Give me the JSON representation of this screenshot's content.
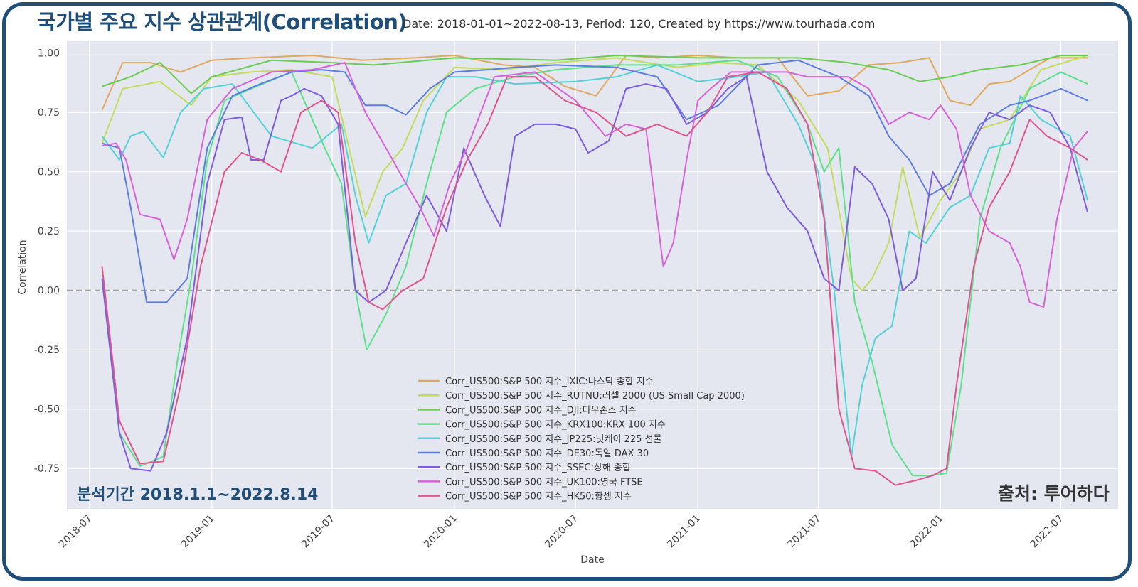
{
  "header": {
    "title": "국가별 주요 지수  상관관계(Correlation)",
    "subtitle": "Date: 2018-01-01~2022-08-13, Period: 120, Created by https://www.tourhada.com"
  },
  "notes": {
    "period": "분석기간 2018.1.1~2022.8.14",
    "source": "출처: 투어하다"
  },
  "colors": {
    "frame": "#1f4e79",
    "plot_bg": "#e5e7f0",
    "grid": "#ffffff",
    "zero_line": "#a0a0a0"
  },
  "chart_data": {
    "type": "line",
    "title": "",
    "xlabel": "Date",
    "ylabel": "Correlation",
    "x_ticks": [
      "2018-07",
      "2019-01",
      "2019-07",
      "2020-01",
      "2020-07",
      "2021-01",
      "2021-07",
      "2022-01",
      "2022-07"
    ],
    "y_ticks": [
      "1.00",
      "0.75",
      "0.50",
      "0.25",
      "0.00",
      "-0.25",
      "-0.50",
      "-0.75"
    ],
    "xlim": [
      "2018-05-28",
      "2022-09-25"
    ],
    "ylim": [
      -0.92,
      1.05
    ],
    "grid": true,
    "legend": "bottom-center",
    "series": [
      {
        "name": "Corr_US500:S&P 500 지수_IXIC:나스닥 종합 지수",
        "color": "#e0a860",
        "x": [
          "2018-07-20",
          "2018-08-20",
          "2018-10-01",
          "2018-11-15",
          "2019-01-01",
          "2019-03-01",
          "2019-06-01",
          "2019-08-15",
          "2019-11-01",
          "2020-01-01",
          "2020-03-15",
          "2020-05-01",
          "2020-06-15",
          "2020-08-01",
          "2020-09-15",
          "2020-11-01",
          "2021-01-01",
          "2021-03-01",
          "2021-05-01",
          "2021-06-15",
          "2021-08-01",
          "2021-09-15",
          "2021-11-01",
          "2021-12-15",
          "2022-01-15",
          "2022-02-15",
          "2022-03-15",
          "2022-04-15",
          "2022-05-15",
          "2022-06-15",
          "2022-08-10"
        ],
        "y": [
          0.76,
          0.96,
          0.96,
          0.92,
          0.97,
          0.98,
          0.99,
          0.97,
          0.98,
          0.99,
          0.95,
          0.94,
          0.86,
          0.82,
          0.99,
          0.98,
          0.99,
          0.98,
          0.98,
          0.82,
          0.84,
          0.95,
          0.96,
          0.98,
          0.8,
          0.78,
          0.87,
          0.88,
          0.93,
          0.98,
          0.98
        ]
      },
      {
        "name": "Corr_US500:S&P 500 지수_RUTNU:러셀 2000 (US Small Cap 2000)",
        "color": "#c3dc5c",
        "x": [
          "2018-07-20",
          "2018-08-20",
          "2018-10-15",
          "2018-12-01",
          "2019-01-01",
          "2019-03-01",
          "2019-05-01",
          "2019-07-01",
          "2019-08-20",
          "2019-09-15",
          "2019-10-15",
          "2019-11-15",
          "2020-01-01",
          "2020-03-15",
          "2020-06-01",
          "2020-09-01",
          "2020-12-01",
          "2021-02-01",
          "2021-04-01",
          "2021-06-01",
          "2021-07-15",
          "2021-08-20",
          "2021-09-05",
          "2021-09-20",
          "2021-10-15",
          "2021-11-05",
          "2021-12-01",
          "2022-01-01",
          "2022-02-01",
          "2022-03-01",
          "2022-04-15",
          "2022-06-01",
          "2022-08-10"
        ],
        "y": [
          0.62,
          0.85,
          0.88,
          0.78,
          0.9,
          0.92,
          0.93,
          0.9,
          0.31,
          0.5,
          0.6,
          0.8,
          0.94,
          0.93,
          0.96,
          0.98,
          0.94,
          0.96,
          0.95,
          0.8,
          0.6,
          0.05,
          0.0,
          0.05,
          0.2,
          0.52,
          0.22,
          0.38,
          0.5,
          0.68,
          0.72,
          0.93,
          0.99
        ]
      },
      {
        "name": "Corr_US500:S&P 500 지수_DJI:다우존스 지수",
        "color": "#6acc52",
        "x": [
          "2018-07-20",
          "2018-09-01",
          "2018-10-15",
          "2018-12-01",
          "2019-01-01",
          "2019-04-01",
          "2019-07-01",
          "2019-09-01",
          "2020-01-01",
          "2020-06-01",
          "2020-09-01",
          "2021-01-01",
          "2021-06-01",
          "2021-08-15",
          "2021-10-15",
          "2021-12-01",
          "2022-01-15",
          "2022-03-01",
          "2022-05-01",
          "2022-07-01",
          "2022-08-10"
        ],
        "y": [
          0.86,
          0.9,
          0.96,
          0.83,
          0.9,
          0.97,
          0.96,
          0.95,
          0.98,
          0.97,
          0.99,
          0.98,
          0.98,
          0.96,
          0.93,
          0.88,
          0.9,
          0.93,
          0.95,
          0.99,
          0.99
        ]
      },
      {
        "name": "Corr_US500:S&P 500 지수_KRX100:KRX 100 지수",
        "color": "#5ce08c",
        "x": [
          "2018-07-20",
          "2018-08-15",
          "2018-09-15",
          "2018-10-20",
          "2018-11-10",
          "2018-12-01",
          "2018-12-25",
          "2019-01-20",
          "2019-03-01",
          "2019-05-01",
          "2019-06-20",
          "2019-07-15",
          "2019-08-05",
          "2019-08-22",
          "2019-09-20",
          "2019-10-20",
          "2019-11-20",
          "2019-12-20",
          "2020-02-01",
          "2020-04-01",
          "2020-06-01",
          "2020-09-01",
          "2020-12-01",
          "2021-03-01",
          "2021-05-01",
          "2021-06-15",
          "2021-07-10",
          "2021-08-01",
          "2021-08-25",
          "2021-09-20",
          "2021-10-20",
          "2021-11-20",
          "2021-12-15",
          "2022-01-10",
          "2022-02-01",
          "2022-03-01",
          "2022-04-01",
          "2022-05-15",
          "2022-07-01",
          "2022-08-10"
        ],
        "y": [
          0.05,
          -0.6,
          -0.74,
          -0.7,
          -0.3,
          0.05,
          0.55,
          0.8,
          0.85,
          0.92,
          0.6,
          0.45,
          0.0,
          -0.25,
          -0.1,
          0.1,
          0.45,
          0.75,
          0.85,
          0.9,
          0.93,
          0.95,
          0.95,
          0.97,
          0.9,
          0.7,
          0.5,
          0.6,
          -0.05,
          -0.3,
          -0.65,
          -0.78,
          -0.78,
          -0.77,
          -0.4,
          0.3,
          0.6,
          0.85,
          0.92,
          0.87
        ]
      },
      {
        "name": "Corr_US500:S&P 500 지수_JP225:닛케이 225 선물",
        "color": "#52d2d6",
        "x": [
          "2018-07-20",
          "2018-08-15",
          "2018-09-01",
          "2018-09-20",
          "2018-10-20",
          "2018-11-15",
          "2018-12-20",
          "2019-02-01",
          "2019-04-01",
          "2019-06-01",
          "2019-07-15",
          "2019-08-05",
          "2019-08-25",
          "2019-09-20",
          "2019-10-20",
          "2019-11-20",
          "2019-12-20",
          "2020-02-01",
          "2020-04-01",
          "2020-07-01",
          "2020-09-01",
          "2020-11-01",
          "2021-01-01",
          "2021-03-01",
          "2021-04-15",
          "2021-06-01",
          "2021-07-01",
          "2021-07-25",
          "2021-08-20",
          "2021-09-05",
          "2021-09-25",
          "2021-10-20",
          "2021-11-15",
          "2021-12-10",
          "2022-01-15",
          "2022-02-15",
          "2022-03-15",
          "2022-04-15",
          "2022-05-01",
          "2022-06-01",
          "2022-07-15",
          "2022-08-10"
        ],
        "y": [
          0.65,
          0.55,
          0.65,
          0.67,
          0.56,
          0.75,
          0.85,
          0.87,
          0.65,
          0.6,
          0.7,
          0.4,
          0.2,
          0.4,
          0.45,
          0.75,
          0.9,
          0.9,
          0.87,
          0.88,
          0.9,
          0.95,
          0.88,
          0.9,
          0.92,
          0.7,
          0.5,
          0.0,
          -0.7,
          -0.4,
          -0.2,
          -0.15,
          0.25,
          0.2,
          0.35,
          0.4,
          0.6,
          0.62,
          0.82,
          0.72,
          0.65,
          0.38
        ]
      },
      {
        "name": "Corr_US500:S&P 500 지수_DE30:독일 DAX 30",
        "color": "#5b7ee0",
        "x": [
          "2018-07-20",
          "2018-08-15",
          "2018-09-01",
          "2018-09-25",
          "2018-10-25",
          "2018-11-25",
          "2018-12-25",
          "2019-02-01",
          "2019-03-15",
          "2019-05-01",
          "2019-06-15",
          "2019-07-20",
          "2019-08-20",
          "2019-09-20",
          "2019-10-20",
          "2019-11-25",
          "2020-01-01",
          "2020-02-20",
          "2020-04-01",
          "2020-06-01",
          "2020-09-01",
          "2020-11-01",
          "2020-12-15",
          "2021-02-01",
          "2021-04-01",
          "2021-06-01",
          "2021-08-01",
          "2021-09-15",
          "2021-10-15",
          "2021-11-15",
          "2021-12-15",
          "2022-01-15",
          "2022-03-01",
          "2022-04-15",
          "2022-05-15",
          "2022-07-01",
          "2022-08-10"
        ],
        "y": [
          0.62,
          0.6,
          0.35,
          -0.05,
          -0.05,
          0.05,
          0.6,
          0.82,
          0.87,
          0.92,
          0.93,
          0.92,
          0.78,
          0.78,
          0.74,
          0.85,
          0.92,
          0.93,
          0.94,
          0.95,
          0.94,
          0.9,
          0.72,
          0.78,
          0.95,
          0.97,
          0.9,
          0.82,
          0.65,
          0.55,
          0.4,
          0.45,
          0.7,
          0.78,
          0.8,
          0.85,
          0.8
        ]
      },
      {
        "name": "Corr_US500:S&P 500 지수_SSEC:상해 종합",
        "color": "#7e5ce0",
        "x": [
          "2018-07-20",
          "2018-08-15",
          "2018-09-01",
          "2018-10-01",
          "2018-10-25",
          "2018-11-25",
          "2018-12-25",
          "2019-01-20",
          "2019-02-15",
          "2019-03-01",
          "2019-03-20",
          "2019-04-15",
          "2019-05-01",
          "2019-05-20",
          "2019-06-15",
          "2019-07-10",
          "2019-08-05",
          "2019-08-25",
          "2019-09-20",
          "2019-10-20",
          "2019-11-20",
          "2019-12-20",
          "2020-01-15",
          "2020-02-15",
          "2020-03-10",
          "2020-04-01",
          "2020-05-01",
          "2020-06-01",
          "2020-07-01",
          "2020-07-20",
          "2020-08-20",
          "2020-09-15",
          "2020-10-15",
          "2020-11-15",
          "2020-12-15",
          "2021-01-15",
          "2021-02-15",
          "2021-03-15",
          "2021-04-15",
          "2021-05-15",
          "2021-06-15",
          "2021-07-10",
          "2021-08-01",
          "2021-08-25",
          "2021-09-20",
          "2021-10-15",
          "2021-11-05",
          "2021-11-25",
          "2021-12-20",
          "2022-01-15",
          "2022-02-15",
          "2022-03-15",
          "2022-04-15",
          "2022-05-15",
          "2022-06-15",
          "2022-07-15",
          "2022-08-10"
        ],
        "y": [
          0.05,
          -0.6,
          -0.75,
          -0.76,
          -0.6,
          -0.2,
          0.45,
          0.72,
          0.73,
          0.55,
          0.55,
          0.8,
          0.82,
          0.85,
          0.82,
          0.7,
          0.0,
          -0.05,
          0.0,
          0.2,
          0.4,
          0.25,
          0.6,
          0.4,
          0.27,
          0.65,
          0.7,
          0.7,
          0.68,
          0.58,
          0.63,
          0.85,
          0.87,
          0.85,
          0.7,
          0.75,
          0.85,
          0.9,
          0.5,
          0.35,
          0.25,
          0.05,
          0.0,
          0.52,
          0.45,
          0.3,
          0.0,
          0.05,
          0.5,
          0.38,
          0.6,
          0.75,
          0.72,
          0.78,
          0.75,
          0.6,
          0.33
        ]
      },
      {
        "name": "Corr_US500:S&P 500 지수_UK100:영국 FTSE",
        "color": "#d762d8",
        "x": [
          "2018-07-20",
          "2018-08-10",
          "2018-08-25",
          "2018-09-15",
          "2018-10-15",
          "2018-11-05",
          "2018-11-25",
          "2018-12-25",
          "2019-02-01",
          "2019-04-01",
          "2019-06-01",
          "2019-07-20",
          "2019-08-20",
          "2019-09-20",
          "2019-10-20",
          "2019-11-10",
          "2019-12-01",
          "2019-12-25",
          "2020-01-20",
          "2020-03-01",
          "2020-05-01",
          "2020-07-01",
          "2020-08-15",
          "2020-09-15",
          "2020-10-15",
          "2020-11-10",
          "2020-11-25",
          "2020-12-15",
          "2021-01-01",
          "2021-01-20",
          "2021-02-20",
          "2021-04-01",
          "2021-05-15",
          "2021-06-15",
          "2021-07-15",
          "2021-08-15",
          "2021-09-15",
          "2021-10-15",
          "2021-11-15",
          "2021-12-15",
          "2022-01-01",
          "2022-01-25",
          "2022-02-15",
          "2022-03-15",
          "2022-04-15",
          "2022-05-01",
          "2022-05-15",
          "2022-06-05",
          "2022-06-25",
          "2022-07-20",
          "2022-08-10"
        ],
        "y": [
          0.61,
          0.62,
          0.55,
          0.32,
          0.3,
          0.13,
          0.3,
          0.72,
          0.85,
          0.92,
          0.93,
          0.96,
          0.75,
          0.6,
          0.45,
          0.35,
          0.23,
          0.45,
          0.6,
          0.9,
          0.92,
          0.8,
          0.65,
          0.7,
          0.68,
          0.1,
          0.2,
          0.55,
          0.8,
          0.85,
          0.92,
          0.92,
          0.92,
          0.9,
          0.9,
          0.9,
          0.85,
          0.7,
          0.75,
          0.72,
          0.78,
          0.68,
          0.4,
          0.25,
          0.2,
          0.1,
          -0.05,
          -0.07,
          0.3,
          0.6,
          0.67
        ]
      },
      {
        "name": "Corr_US500:S&P 500 지수_HK50:항셍 지수",
        "color": "#e0548e",
        "x": [
          "2018-07-20",
          "2018-08-15",
          "2018-09-15",
          "2018-10-20",
          "2018-11-15",
          "2018-12-15",
          "2019-01-20",
          "2019-02-15",
          "2019-03-15",
          "2019-04-15",
          "2019-05-15",
          "2019-06-15",
          "2019-07-10",
          "2019-08-05",
          "2019-08-25",
          "2019-09-15",
          "2019-10-15",
          "2019-11-15",
          "2019-12-20",
          "2020-01-20",
          "2020-02-20",
          "2020-03-20",
          "2020-05-01",
          "2020-06-15",
          "2020-08-01",
          "2020-09-15",
          "2020-11-01",
          "2020-12-15",
          "2021-01-15",
          "2021-02-15",
          "2021-04-01",
          "2021-05-15",
          "2021-06-15",
          "2021-07-10",
          "2021-08-01",
          "2021-08-25",
          "2021-09-25",
          "2021-10-25",
          "2021-11-25",
          "2021-12-20",
          "2022-01-10",
          "2022-01-25",
          "2022-02-20",
          "2022-03-15",
          "2022-04-15",
          "2022-05-15",
          "2022-06-10",
          "2022-07-15",
          "2022-08-10"
        ],
        "y": [
          0.1,
          -0.55,
          -0.73,
          -0.72,
          -0.4,
          0.1,
          0.5,
          0.58,
          0.55,
          0.5,
          0.75,
          0.8,
          0.75,
          0.2,
          -0.05,
          -0.08,
          0.0,
          0.05,
          0.35,
          0.55,
          0.7,
          0.9,
          0.9,
          0.8,
          0.75,
          0.65,
          0.7,
          0.65,
          0.75,
          0.9,
          0.92,
          0.85,
          0.7,
          0.3,
          -0.5,
          -0.75,
          -0.76,
          -0.82,
          -0.8,
          -0.78,
          -0.75,
          -0.4,
          0.1,
          0.35,
          0.5,
          0.72,
          0.65,
          0.6,
          0.55
        ]
      }
    ]
  }
}
